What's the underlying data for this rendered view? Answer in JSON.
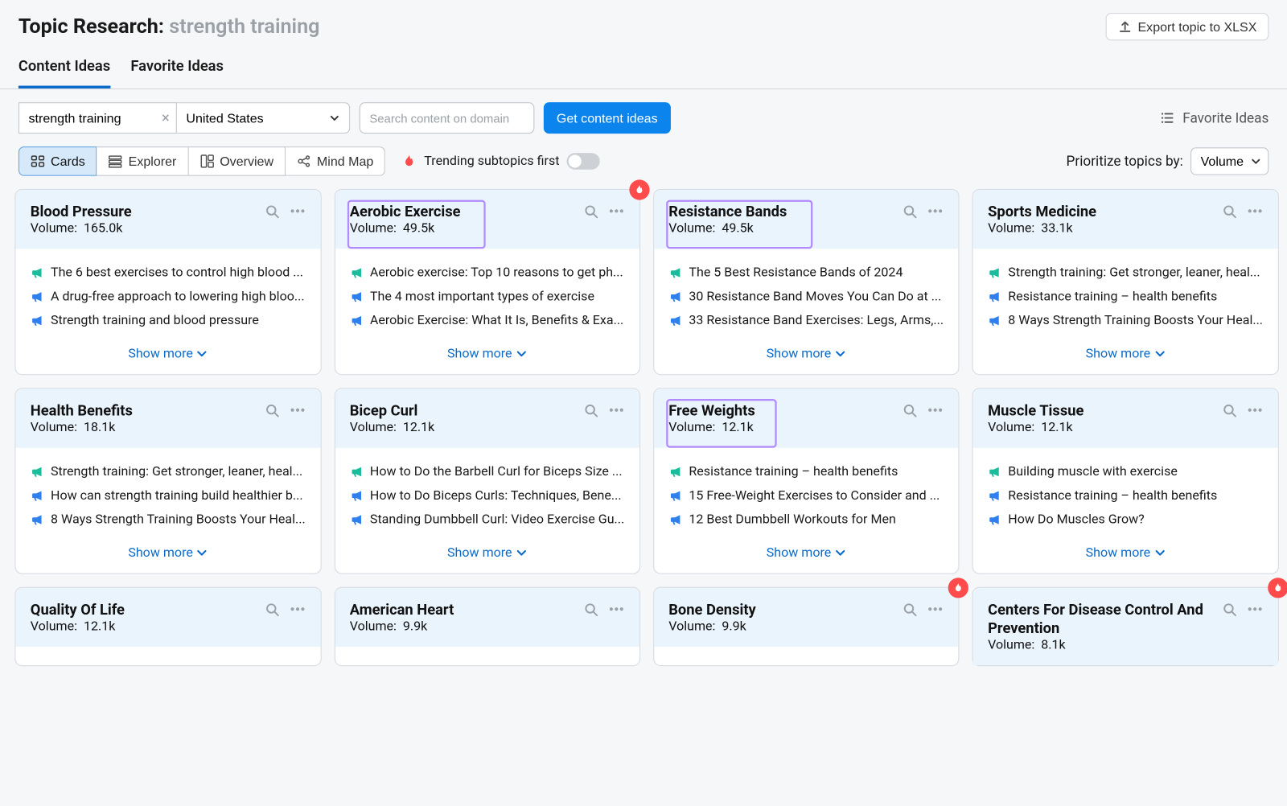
{
  "header": {
    "title_prefix": "Topic Research:",
    "title_topic": "strength training",
    "export_label": "Export topic to XLSX"
  },
  "tabs": [
    {
      "label": "Content Ideas",
      "active": true
    },
    {
      "label": "Favorite Ideas",
      "active": false
    }
  ],
  "controls": {
    "topic_value": "strength training",
    "country_value": "United States",
    "domain_placeholder": "Search content on domain",
    "get_ideas_label": "Get content ideas",
    "favorite_link_label": "Favorite Ideas",
    "views": [
      {
        "label": "Cards",
        "active": true
      },
      {
        "label": "Explorer",
        "active": false
      },
      {
        "label": "Overview",
        "active": false
      },
      {
        "label": "Mind Map",
        "active": false
      }
    ],
    "trending_label": "Trending subtopics first",
    "prioritize_label": "Prioritize topics by:",
    "prioritize_value": "Volume"
  },
  "volume_label": "Volume:",
  "show_more_label": "Show more",
  "colors": {
    "bullhorn_green": "#1abc9c",
    "bullhorn_blue": "#2f80ed",
    "flame": "#ff4b4b",
    "highlight": "#b28cff"
  },
  "cards": [
    {
      "title": "Blood Pressure",
      "volume": "165.0k",
      "highlight": false,
      "flame": false,
      "short": false,
      "items": [
        {
          "color": "green",
          "text": "The 6 best exercises to control high blood ..."
        },
        {
          "color": "blue",
          "text": "A drug-free approach to lowering high bloo..."
        },
        {
          "color": "blue",
          "text": "Strength training and blood pressure"
        }
      ]
    },
    {
      "title": "Aerobic Exercise",
      "volume": "49.5k",
      "highlight": true,
      "flame": true,
      "short": false,
      "items": [
        {
          "color": "green",
          "text": "Aerobic exercise: Top 10 reasons to get ph..."
        },
        {
          "color": "blue",
          "text": "The 4 most important types of exercise"
        },
        {
          "color": "blue",
          "text": "Aerobic Exercise: What It Is, Benefits & Exa..."
        }
      ]
    },
    {
      "title": "Resistance Bands",
      "volume": "49.5k",
      "highlight": true,
      "flame": false,
      "short": false,
      "items": [
        {
          "color": "green",
          "text": "The 5 Best Resistance Bands of 2024"
        },
        {
          "color": "blue",
          "text": "30 Resistance Band Moves You Can Do at ..."
        },
        {
          "color": "blue",
          "text": "33 Resistance Band Exercises: Legs, Arms,..."
        }
      ]
    },
    {
      "title": "Sports Medicine",
      "volume": "33.1k",
      "highlight": false,
      "flame": false,
      "short": false,
      "items": [
        {
          "color": "green",
          "text": "Strength training: Get stronger, leaner, heal..."
        },
        {
          "color": "blue",
          "text": "Resistance training – health benefits"
        },
        {
          "color": "blue",
          "text": "8 Ways Strength Training Boosts Your Heal..."
        }
      ]
    },
    {
      "title": "Health Benefits",
      "volume": "18.1k",
      "highlight": false,
      "flame": false,
      "short": false,
      "items": [
        {
          "color": "green",
          "text": "Strength training: Get stronger, leaner, heal..."
        },
        {
          "color": "blue",
          "text": "How can strength training build healthier b..."
        },
        {
          "color": "blue",
          "text": "8 Ways Strength Training Boosts Your Heal..."
        }
      ]
    },
    {
      "title": "Bicep Curl",
      "volume": "12.1k",
      "highlight": false,
      "flame": false,
      "short": false,
      "items": [
        {
          "color": "green",
          "text": "How to Do the Barbell Curl for Biceps Size ..."
        },
        {
          "color": "blue",
          "text": "How to Do Biceps Curls: Techniques, Bene..."
        },
        {
          "color": "blue",
          "text": "Standing Dumbbell Curl: Video Exercise Gu..."
        }
      ]
    },
    {
      "title": "Free Weights",
      "volume": "12.1k",
      "highlight": true,
      "flame": false,
      "short": false,
      "items": [
        {
          "color": "green",
          "text": "Resistance training – health benefits"
        },
        {
          "color": "blue",
          "text": "15 Free-Weight Exercises to Consider and ..."
        },
        {
          "color": "blue",
          "text": "12 Best Dumbbell Workouts for Men"
        }
      ]
    },
    {
      "title": "Muscle Tissue",
      "volume": "12.1k",
      "highlight": false,
      "flame": false,
      "short": false,
      "items": [
        {
          "color": "green",
          "text": "Building muscle with exercise"
        },
        {
          "color": "blue",
          "text": "Resistance training – health benefits"
        },
        {
          "color": "blue",
          "text": "How Do Muscles Grow?"
        }
      ]
    },
    {
      "title": "Quality Of Life",
      "volume": "12.1k",
      "highlight": false,
      "flame": false,
      "short": true,
      "items": []
    },
    {
      "title": "American Heart",
      "volume": "9.9k",
      "highlight": false,
      "flame": false,
      "short": true,
      "items": []
    },
    {
      "title": "Bone Density",
      "volume": "9.9k",
      "highlight": false,
      "flame": true,
      "short": true,
      "items": []
    },
    {
      "title": "Centers For Disease Control And Prevention",
      "volume": "8.1k",
      "highlight": false,
      "flame": true,
      "short": true,
      "items": []
    }
  ]
}
